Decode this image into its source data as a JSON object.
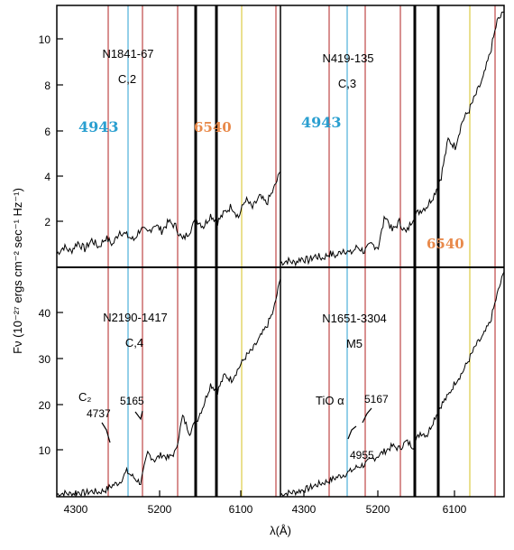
{
  "chart_data": {
    "type": "line",
    "ylabel": "Fν (10⁻²⁷ ergs cm⁻² sec⁻¹ Hz⁻¹)",
    "xlabel": "λ(Å)",
    "x_ticks": [
      "4300",
      "5200",
      "6100"
    ],
    "y_ticks_top": [
      "2",
      "4",
      "6",
      "8",
      "10"
    ],
    "y_ticks_bottom": [
      "10",
      "20",
      "30",
      "40"
    ],
    "panels": [
      {
        "id": "top-left",
        "name_line1": "N1841-67",
        "name_line2": "C,2",
        "annotations": [
          {
            "text": "4943",
            "color": "#2a9fd0"
          },
          {
            "text": "6540",
            "color": "#e8894a"
          }
        ],
        "ylim": [
          0,
          11.5
        ],
        "x": [
          3900,
          4000,
          4100,
          4200,
          4300,
          4400,
          4500,
          4600,
          4700,
          4800,
          4900,
          5000,
          5100,
          5200,
          5300,
          5400,
          5500,
          5600,
          5700,
          5800,
          5900,
          6000,
          6100,
          6200,
          6300,
          6400,
          6500,
          6600,
          6700,
          6800,
          6900,
          7000,
          7100
        ],
        "y": [
          0.6,
          0.9,
          0.7,
          1.1,
          0.8,
          1.2,
          0.9,
          1.3,
          1.0,
          1.6,
          1.4,
          1.2,
          1.7,
          1.5,
          1.9,
          1.6,
          2.0,
          1.8,
          1.2,
          1.6,
          2.1,
          1.8,
          2.3,
          2.0,
          2.4,
          2.7,
          2.2,
          3.0,
          2.6,
          3.1,
          2.8,
          3.4,
          4.2
        ]
      },
      {
        "id": "top-right",
        "name_line1": "N419-135",
        "name_line2": "C,3",
        "annotations": [
          {
            "text": "4943",
            "color": "#2a9fd0"
          },
          {
            "text": "6540",
            "color": "#e8894a"
          }
        ],
        "ylim": [
          0,
          11.5
        ],
        "x": [
          3900,
          4000,
          4100,
          4200,
          4300,
          4400,
          4500,
          4600,
          4700,
          4800,
          4900,
          5000,
          5100,
          5200,
          5300,
          5400,
          5500,
          5600,
          5700,
          5800,
          5900,
          6000,
          6100,
          6200,
          6300,
          6400,
          6500,
          6600,
          6700,
          6800,
          6900,
          7000,
          7100
        ],
        "y": [
          0.2,
          0.3,
          0.2,
          0.4,
          0.3,
          0.5,
          0.4,
          0.6,
          0.5,
          0.8,
          0.6,
          0.9,
          0.7,
          1.0,
          0.9,
          2.3,
          1.6,
          2.0,
          1.5,
          2.2,
          2.5,
          2.7,
          3.2,
          4.0,
          5.6,
          5.3,
          6.4,
          6.9,
          7.6,
          8.3,
          9.4,
          10.8,
          11.2
        ]
      },
      {
        "id": "bottom-left",
        "name_line1": "N2190-1417",
        "name_line2": "C,4",
        "annotations": [
          {
            "text": "C₂"
          },
          {
            "text": "4737"
          },
          {
            "text": "5165"
          }
        ],
        "ylim": [
          0,
          50
        ],
        "x": [
          3900,
          4000,
          4100,
          4200,
          4300,
          4400,
          4500,
          4600,
          4700,
          4800,
          4900,
          5000,
          5100,
          5200,
          5300,
          5400,
          5500,
          5600,
          5700,
          5800,
          5900,
          6000,
          6100,
          6200,
          6300,
          6400,
          6500,
          6600,
          6700,
          6800,
          6900,
          7000,
          7100
        ],
        "y": [
          0.5,
          0.8,
          0.6,
          1.0,
          0.8,
          1.2,
          1.0,
          1.5,
          2.5,
          3.2,
          5.5,
          4.2,
          3.0,
          9.5,
          8.0,
          9.2,
          8.4,
          9.8,
          17.5,
          14.0,
          16.5,
          20.0,
          24.5,
          23.0,
          26.5,
          25.5,
          28.0,
          30.5,
          32.0,
          34.5,
          37.0,
          40.5,
          47.5
        ]
      },
      {
        "id": "bottom-right",
        "name_line1": "N1651-3304",
        "name_line2": "M5",
        "annotations": [
          {
            "text": "TiO α"
          },
          {
            "text": "5167"
          },
          {
            "text": "4955"
          }
        ],
        "ylim": [
          0,
          50
        ],
        "x": [
          3900,
          4000,
          4100,
          4200,
          4300,
          4400,
          4500,
          4600,
          4700,
          4800,
          4900,
          5000,
          5100,
          5200,
          5300,
          5400,
          5500,
          5600,
          5700,
          5800,
          5900,
          6000,
          6100,
          6200,
          6300,
          6400,
          6500,
          6600,
          6700,
          6800,
          6900,
          7000,
          7100
        ],
        "y": [
          0.5,
          0.8,
          1.0,
          1.4,
          1.8,
          2.5,
          3.0,
          3.5,
          4.2,
          4.8,
          5.5,
          6.5,
          7.0,
          8.0,
          9.0,
          10.0,
          11.0,
          10.5,
          12.0,
          11.0,
          14.0,
          13.5,
          17.0,
          20.0,
          22.0,
          25.0,
          27.0,
          30.0,
          33.0,
          35.0,
          38.0,
          44.0,
          49.0
        ]
      }
    ],
    "vertical_lines": [
      {
        "color": "#b22222",
        "width": 1
      },
      {
        "color": "#2a9fd0",
        "width": 1
      },
      {
        "color": "#b22222",
        "width": 1
      },
      {
        "color": "#b22222",
        "width": 1
      },
      {
        "color": "#000000",
        "width": 3
      },
      {
        "color": "#000000",
        "width": 3
      },
      {
        "color": "#b22222",
        "width": 1
      },
      {
        "color": "#d6c21f",
        "width": 1
      }
    ]
  }
}
